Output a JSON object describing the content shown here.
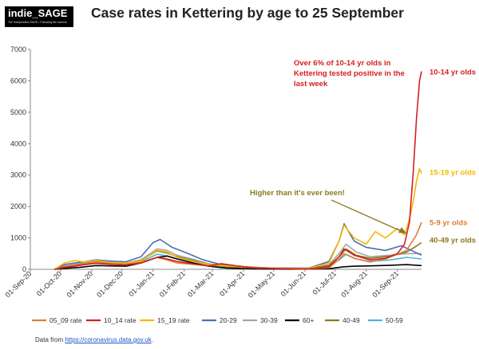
{
  "logo": {
    "title": "indie_SAGE",
    "subtitle": "The Independent SAGE • Following the science"
  },
  "title": "Case rates in Kettering by age to 25 September",
  "source": {
    "prefix": "Data from ",
    "link": "https://coronavirus.data.gov.uk",
    "suffix": "."
  },
  "annotations": {
    "main": [
      "Over 6% of 10-14 yr olds in",
      "Kettering tested positive in the",
      "last week"
    ],
    "ever": "Higher than it's ever been!"
  },
  "chart_data": {
    "type": "line",
    "title": "Case rates in Kettering by age to 25 September",
    "xlabel": "",
    "ylabel": "",
    "x_range": [
      "2020-09-01",
      "2021-09-25"
    ],
    "x_ticks": [
      "01-Sep-20",
      "01-Oct-20",
      "01-Nov-20",
      "01-Dec-20",
      "01-Jan-21",
      "01-Feb-21",
      "01-Mar-21",
      "01-Apr-21",
      "01-May-21",
      "01-Jun-21",
      "01-Jul-21",
      "01-Aug-21",
      "01-Sep-21"
    ],
    "ylim": [
      0,
      7000
    ],
    "y_ticks": [
      0,
      1000,
      2000,
      3000,
      4000,
      5000,
      6000,
      7000
    ],
    "grid": false,
    "legend_position": "bottom",
    "series": [
      {
        "name": "05_09 rate",
        "color": "#e07b39",
        "end_label": "5-9 yr olds",
        "points": [
          [
            "2020-09-25",
            0
          ],
          [
            "2020-10-05",
            80
          ],
          [
            "2020-10-15",
            130
          ],
          [
            "2020-10-25",
            180
          ],
          [
            "2020-11-05",
            230
          ],
          [
            "2020-11-20",
            190
          ],
          [
            "2020-12-05",
            170
          ],
          [
            "2020-12-20",
            220
          ],
          [
            "2021-01-05",
            380
          ],
          [
            "2021-01-15",
            300
          ],
          [
            "2021-01-25",
            200
          ],
          [
            "2021-02-10",
            160
          ],
          [
            "2021-02-25",
            110
          ],
          [
            "2021-03-10",
            130
          ],
          [
            "2021-03-25",
            90
          ],
          [
            "2021-04-15",
            40
          ],
          [
            "2021-05-15",
            20
          ],
          [
            "2021-06-05",
            10
          ],
          [
            "2021-06-25",
            50
          ],
          [
            "2021-07-05",
            320
          ],
          [
            "2021-07-10",
            500
          ],
          [
            "2021-07-20",
            350
          ],
          [
            "2021-08-05",
            230
          ],
          [
            "2021-08-20",
            330
          ],
          [
            "2021-09-01",
            480
          ],
          [
            "2021-09-10",
            600
          ],
          [
            "2021-09-16",
            900
          ],
          [
            "2021-09-20",
            1100
          ],
          [
            "2021-09-25",
            1500
          ]
        ]
      },
      {
        "name": "10_14 rate",
        "color": "#d42020",
        "end_label": "10-14 yr olds",
        "points": [
          [
            "2020-09-25",
            0
          ],
          [
            "2020-10-05",
            60
          ],
          [
            "2020-10-15",
            100
          ],
          [
            "2020-10-25",
            150
          ],
          [
            "2020-11-05",
            190
          ],
          [
            "2020-11-20",
            160
          ],
          [
            "2020-12-05",
            140
          ],
          [
            "2020-12-20",
            200
          ],
          [
            "2021-01-05",
            380
          ],
          [
            "2021-01-15",
            330
          ],
          [
            "2021-01-25",
            250
          ],
          [
            "2021-02-10",
            170
          ],
          [
            "2021-02-25",
            110
          ],
          [
            "2021-03-10",
            180
          ],
          [
            "2021-03-25",
            110
          ],
          [
            "2021-04-15",
            40
          ],
          [
            "2021-05-15",
            20
          ],
          [
            "2021-06-05",
            15
          ],
          [
            "2021-06-25",
            80
          ],
          [
            "2021-07-05",
            400
          ],
          [
            "2021-07-10",
            650
          ],
          [
            "2021-07-20",
            450
          ],
          [
            "2021-08-05",
            300
          ],
          [
            "2021-08-20",
            350
          ],
          [
            "2021-09-01",
            500
          ],
          [
            "2021-09-08",
            800
          ],
          [
            "2021-09-13",
            1500
          ],
          [
            "2021-09-17",
            3200
          ],
          [
            "2021-09-20",
            4800
          ],
          [
            "2021-09-23",
            6000
          ],
          [
            "2021-09-25",
            6300
          ]
        ]
      },
      {
        "name": "15_19 rate",
        "color": "#f5b800",
        "end_label": "15-19 yr olds",
        "points": [
          [
            "2020-09-25",
            0
          ],
          [
            "2020-10-05",
            200
          ],
          [
            "2020-10-15",
            280
          ],
          [
            "2020-10-25",
            230
          ],
          [
            "2020-11-05",
            280
          ],
          [
            "2020-11-20",
            220
          ],
          [
            "2020-12-05",
            200
          ],
          [
            "2020-12-20",
            260
          ],
          [
            "2021-01-05",
            600
          ],
          [
            "2021-01-15",
            550
          ],
          [
            "2021-01-25",
            380
          ],
          [
            "2021-02-10",
            250
          ],
          [
            "2021-02-25",
            160
          ],
          [
            "2021-03-10",
            120
          ],
          [
            "2021-03-25",
            90
          ],
          [
            "2021-04-15",
            50
          ],
          [
            "2021-05-15",
            30
          ],
          [
            "2021-06-05",
            30
          ],
          [
            "2021-06-25",
            200
          ],
          [
            "2021-07-05",
            900
          ],
          [
            "2021-07-10",
            1400
          ],
          [
            "2021-07-20",
            1000
          ],
          [
            "2021-08-01",
            800
          ],
          [
            "2021-08-10",
            1200
          ],
          [
            "2021-08-20",
            1000
          ],
          [
            "2021-09-01",
            1300
          ],
          [
            "2021-09-08",
            1100
          ],
          [
            "2021-09-13",
            1600
          ],
          [
            "2021-09-17",
            2200
          ],
          [
            "2021-09-20",
            2800
          ],
          [
            "2021-09-23",
            3200
          ],
          [
            "2021-09-25",
            3050
          ]
        ]
      },
      {
        "name": "20-29",
        "color": "#4a6fb5",
        "end_label": "",
        "points": [
          [
            "2020-09-25",
            0
          ],
          [
            "2020-10-05",
            150
          ],
          [
            "2020-10-15",
            200
          ],
          [
            "2020-10-25",
            240
          ],
          [
            "2020-11-05",
            300
          ],
          [
            "2020-11-20",
            260
          ],
          [
            "2020-12-05",
            240
          ],
          [
            "2020-12-20",
            400
          ],
          [
            "2021-01-01",
            850
          ],
          [
            "2021-01-08",
            950
          ],
          [
            "2021-01-20",
            700
          ],
          [
            "2021-02-05",
            500
          ],
          [
            "2021-02-20",
            300
          ],
          [
            "2021-03-10",
            150
          ],
          [
            "2021-04-01",
            80
          ],
          [
            "2021-05-01",
            40
          ],
          [
            "2021-06-05",
            40
          ],
          [
            "2021-06-25",
            250
          ],
          [
            "2021-07-05",
            900
          ],
          [
            "2021-07-10",
            1450
          ],
          [
            "2021-07-20",
            900
          ],
          [
            "2021-08-01",
            700
          ],
          [
            "2021-08-20",
            600
          ],
          [
            "2021-09-05",
            750
          ],
          [
            "2021-09-15",
            600
          ],
          [
            "2021-09-25",
            450
          ]
        ]
      },
      {
        "name": "30-39",
        "color": "#a5a5a5",
        "end_label": "",
        "points": [
          [
            "2020-09-25",
            0
          ],
          [
            "2020-10-05",
            100
          ],
          [
            "2020-10-20",
            180
          ],
          [
            "2020-11-05",
            260
          ],
          [
            "2020-11-20",
            220
          ],
          [
            "2020-12-05",
            200
          ],
          [
            "2020-12-20",
            300
          ],
          [
            "2021-01-05",
            650
          ],
          [
            "2021-01-15",
            600
          ],
          [
            "2021-01-25",
            450
          ],
          [
            "2021-02-10",
            320
          ],
          [
            "2021-02-25",
            180
          ],
          [
            "2021-03-15",
            100
          ],
          [
            "2021-04-15",
            50
          ],
          [
            "2021-05-15",
            30
          ],
          [
            "2021-06-05",
            30
          ],
          [
            "2021-06-25",
            150
          ],
          [
            "2021-07-05",
            500
          ],
          [
            "2021-07-12",
            800
          ],
          [
            "2021-07-22",
            550
          ],
          [
            "2021-08-05",
            400
          ],
          [
            "2021-08-25",
            450
          ],
          [
            "2021-09-10",
            500
          ],
          [
            "2021-09-25",
            500
          ]
        ]
      },
      {
        "name": "60+",
        "color": "#000000",
        "end_label": "",
        "points": [
          [
            "2020-09-25",
            0
          ],
          [
            "2020-10-05",
            30
          ],
          [
            "2020-10-20",
            60
          ],
          [
            "2020-11-05",
            120
          ],
          [
            "2020-11-20",
            110
          ],
          [
            "2020-12-05",
            100
          ],
          [
            "2020-12-20",
            200
          ],
          [
            "2021-01-05",
            380
          ],
          [
            "2021-01-15",
            420
          ],
          [
            "2021-01-25",
            330
          ],
          [
            "2021-02-10",
            200
          ],
          [
            "2021-02-25",
            100
          ],
          [
            "2021-03-15",
            40
          ],
          [
            "2021-04-15",
            15
          ],
          [
            "2021-05-15",
            8
          ],
          [
            "2021-06-05",
            8
          ],
          [
            "2021-06-25",
            20
          ],
          [
            "2021-07-10",
            80
          ],
          [
            "2021-07-20",
            100
          ],
          [
            "2021-08-05",
            110
          ],
          [
            "2021-08-25",
            130
          ],
          [
            "2021-09-10",
            150
          ],
          [
            "2021-09-25",
            120
          ]
        ]
      },
      {
        "name": "40-49",
        "color": "#8b7a1a",
        "end_label": "40-49 yr olds",
        "points": [
          [
            "2020-09-25",
            0
          ],
          [
            "2020-10-05",
            90
          ],
          [
            "2020-10-20",
            160
          ],
          [
            "2020-11-05",
            230
          ],
          [
            "2020-11-20",
            200
          ],
          [
            "2020-12-05",
            190
          ],
          [
            "2020-12-20",
            280
          ],
          [
            "2021-01-05",
            580
          ],
          [
            "2021-01-15",
            520
          ],
          [
            "2021-01-25",
            400
          ],
          [
            "2021-02-10",
            280
          ],
          [
            "2021-02-25",
            160
          ],
          [
            "2021-03-15",
            90
          ],
          [
            "2021-04-15",
            40
          ],
          [
            "2021-05-15",
            25
          ],
          [
            "2021-06-05",
            25
          ],
          [
            "2021-06-25",
            120
          ],
          [
            "2021-07-05",
            400
          ],
          [
            "2021-07-12",
            650
          ],
          [
            "2021-07-22",
            450
          ],
          [
            "2021-08-05",
            350
          ],
          [
            "2021-08-25",
            420
          ],
          [
            "2021-09-10",
            550
          ],
          [
            "2021-09-18",
            700
          ],
          [
            "2021-09-25",
            850
          ]
        ]
      },
      {
        "name": "50-59",
        "color": "#4fb3e0",
        "end_label": "",
        "points": [
          [
            "2020-09-25",
            0
          ],
          [
            "2020-10-05",
            70
          ],
          [
            "2020-10-20",
            130
          ],
          [
            "2020-11-05",
            200
          ],
          [
            "2020-11-20",
            170
          ],
          [
            "2020-12-05",
            160
          ],
          [
            "2020-12-20",
            240
          ],
          [
            "2021-01-05",
            480
          ],
          [
            "2021-01-15",
            430
          ],
          [
            "2021-01-25",
            330
          ],
          [
            "2021-02-10",
            230
          ],
          [
            "2021-02-25",
            130
          ],
          [
            "2021-03-15",
            70
          ],
          [
            "2021-04-15",
            30
          ],
          [
            "2021-05-15",
            20
          ],
          [
            "2021-06-05",
            20
          ],
          [
            "2021-06-25",
            90
          ],
          [
            "2021-07-05",
            300
          ],
          [
            "2021-07-12",
            480
          ],
          [
            "2021-07-22",
            330
          ],
          [
            "2021-08-05",
            250
          ],
          [
            "2021-08-25",
            300
          ],
          [
            "2021-09-10",
            380
          ],
          [
            "2021-09-25",
            330
          ]
        ]
      }
    ]
  }
}
